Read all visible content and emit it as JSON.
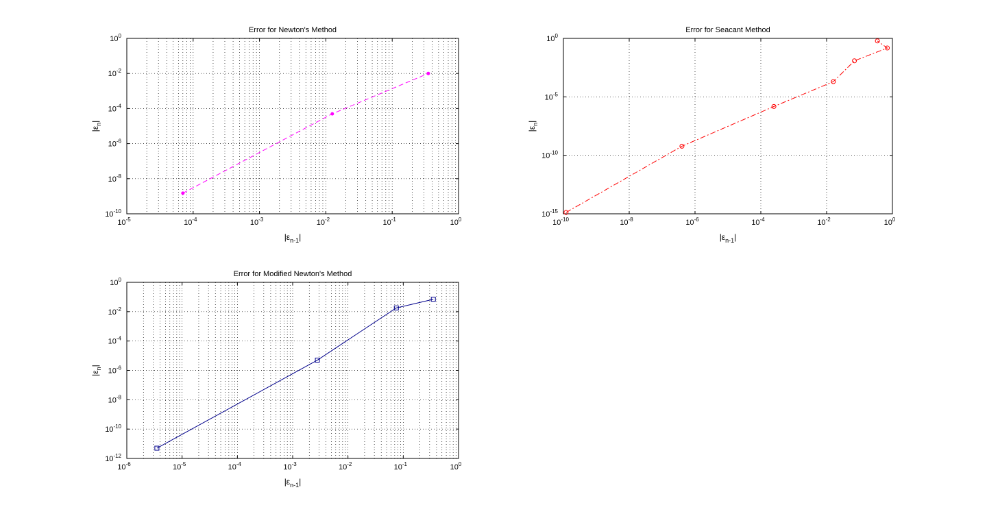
{
  "chart_data": [
    {
      "type": "line",
      "title": "Error for Newton's Method",
      "xlabel": {
        "base": "|ε",
        "sub": "n-1",
        "end": "|"
      },
      "ylabel": {
        "base": "|ε",
        "sub": "n",
        "end": "|"
      },
      "xscale": "log",
      "yscale": "log",
      "xlim": [
        1e-05,
        1
      ],
      "ylim": [
        1e-10,
        1
      ],
      "grid": true,
      "xticks": [
        {
          "value": 1e-05,
          "base": "10",
          "exp": "-5"
        },
        {
          "value": 0.0001,
          "base": "10",
          "exp": "-4"
        },
        {
          "value": 0.001,
          "base": "10",
          "exp": "-3"
        },
        {
          "value": 0.01,
          "base": "10",
          "exp": "-2"
        },
        {
          "value": 0.1,
          "base": "10",
          "exp": "-1"
        },
        {
          "value": 1,
          "base": "10",
          "exp": "0"
        }
      ],
      "yticks": [
        {
          "value": 1e-10,
          "base": "10",
          "exp": "-10"
        },
        {
          "value": 1e-08,
          "base": "10",
          "exp": "-8"
        },
        {
          "value": 1e-06,
          "base": "10",
          "exp": "-6"
        },
        {
          "value": 0.0001,
          "base": "10",
          "exp": "-4"
        },
        {
          "value": 0.01,
          "base": "10",
          "exp": "-2"
        },
        {
          "value": 1,
          "base": "10",
          "exp": "0"
        }
      ],
      "series": [
        {
          "color": "#ff00ff",
          "line": "dashed",
          "marker": "dot",
          "x": [
            7e-05,
            0.0125,
            0.35
          ],
          "y": [
            1.5e-09,
            5e-05,
            0.01
          ]
        }
      ]
    },
    {
      "type": "line",
      "title": "Error for Seacant Method",
      "xlabel": {
        "base": "|ε",
        "sub": "n-1",
        "end": "|"
      },
      "ylabel": {
        "base": "|ε",
        "sub": "n",
        "end": "|"
      },
      "xscale": "log",
      "yscale": "log",
      "xlim": [
        1e-10,
        1
      ],
      "ylim": [
        1e-15,
        1
      ],
      "grid": true,
      "xticks": [
        {
          "value": 1e-10,
          "base": "10",
          "exp": "-10"
        },
        {
          "value": 1e-08,
          "base": "10",
          "exp": "-8"
        },
        {
          "value": 1e-06,
          "base": "10",
          "exp": "-6"
        },
        {
          "value": 0.0001,
          "base": "10",
          "exp": "-4"
        },
        {
          "value": 0.01,
          "base": "10",
          "exp": "-2"
        },
        {
          "value": 1,
          "base": "10",
          "exp": "0"
        }
      ],
      "yticks": [
        {
          "value": 1e-15,
          "base": "10",
          "exp": "-15"
        },
        {
          "value": 1e-10,
          "base": "10",
          "exp": "-10"
        },
        {
          "value": 1e-05,
          "base": "10",
          "exp": "-5"
        },
        {
          "value": 1,
          "base": "10",
          "exp": "0"
        }
      ],
      "series": [
        {
          "color": "#ff0000",
          "line": "dashdot",
          "marker": "circle",
          "x": [
            1.2e-10,
            4e-07,
            0.00025,
            0.016,
            0.07,
            0.7,
            0.35
          ],
          "y": [
            1.3e-15,
            6e-10,
            1.5e-06,
            0.0002,
            0.012,
            0.15,
            0.6
          ]
        }
      ]
    },
    {
      "type": "line",
      "title": "Error for Modified Newton's Method",
      "xlabel": {
        "base": "|ε",
        "sub": "n-1",
        "end": "|"
      },
      "ylabel": {
        "base": "|ε",
        "sub": "n",
        "end": "|"
      },
      "xscale": "log",
      "yscale": "log",
      "xlim": [
        1e-06,
        1
      ],
      "ylim": [
        1e-12,
        1
      ],
      "grid": true,
      "xticks": [
        {
          "value": 1e-06,
          "base": "10",
          "exp": "-6"
        },
        {
          "value": 1e-05,
          "base": "10",
          "exp": "-5"
        },
        {
          "value": 0.0001,
          "base": "10",
          "exp": "-4"
        },
        {
          "value": 0.001,
          "base": "10",
          "exp": "-3"
        },
        {
          "value": 0.01,
          "base": "10",
          "exp": "-2"
        },
        {
          "value": 0.1,
          "base": "10",
          "exp": "-1"
        },
        {
          "value": 1,
          "base": "10",
          "exp": "0"
        }
      ],
      "yticks": [
        {
          "value": 1e-12,
          "base": "10",
          "exp": "-12"
        },
        {
          "value": 1e-10,
          "base": "10",
          "exp": "-10"
        },
        {
          "value": 1e-08,
          "base": "10",
          "exp": "-8"
        },
        {
          "value": 1e-06,
          "base": "10",
          "exp": "-6"
        },
        {
          "value": 0.0001,
          "base": "10",
          "exp": "-4"
        },
        {
          "value": 0.01,
          "base": "10",
          "exp": "-2"
        },
        {
          "value": 1,
          "base": "10",
          "exp": "0"
        }
      ],
      "series": [
        {
          "color": "#00008b",
          "line": "solid",
          "marker": "square",
          "x": [
            3.5e-06,
            0.0028,
            0.075,
            0.35
          ],
          "y": [
            5e-12,
            5e-06,
            0.018,
            0.07
          ]
        }
      ]
    }
  ]
}
